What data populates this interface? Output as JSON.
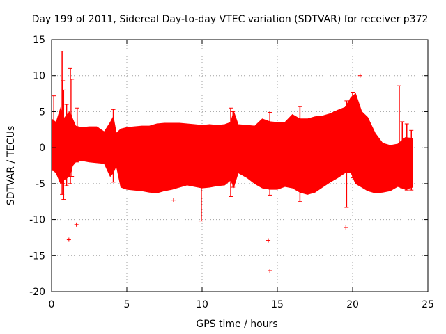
{
  "chart_data": {
    "type": "scatter",
    "title": "Day 199 of 2011, Sidereal Day-to-day VTEC variation (SDTVAR) for receiver p372",
    "xlabel": "GPS time / hours",
    "ylabel": "SDTVAR / TECUs",
    "xlim": [
      0,
      25
    ],
    "ylim": [
      -20,
      15
    ],
    "grid": true,
    "series_color": "#ff0000",
    "xticks": [
      {
        "value": 0,
        "label": "0"
      },
      {
        "value": 5,
        "label": "5"
      },
      {
        "value": 10,
        "label": "10"
      },
      {
        "value": 15,
        "label": "15"
      },
      {
        "value": 20,
        "label": "20"
      },
      {
        "value": 25,
        "label": "25"
      }
    ],
    "yticks": [
      {
        "value": -20,
        "label": "-20"
      },
      {
        "value": -15,
        "label": "-15"
      },
      {
        "value": -10,
        "label": "-10"
      },
      {
        "value": -5,
        "label": "-5"
      },
      {
        "value": 0,
        "label": "0"
      },
      {
        "value": 5,
        "label": "5"
      },
      {
        "value": 10,
        "label": "10"
      },
      {
        "value": 15,
        "label": "15"
      }
    ],
    "envelope": {
      "x": [
        0,
        0.3,
        0.6,
        0.8,
        1.2,
        1.4,
        1.6,
        2.0,
        2.5,
        3.0,
        3.5,
        3.9,
        4.1,
        4.3,
        4.6,
        5.0,
        5.5,
        6.0,
        6.5,
        7.0,
        7.5,
        8.0,
        8.5,
        9.0,
        9.5,
        10.0,
        10.5,
        11.0,
        11.5,
        11.9,
        12.1,
        12.4,
        13.0,
        13.5,
        14.0,
        14.5,
        15.0,
        15.5,
        16.0,
        16.5,
        17.0,
        17.5,
        18.0,
        18.5,
        19.0,
        19.5,
        19.9,
        20.2,
        20.6,
        21.0,
        21.5,
        22.0,
        22.5,
        23.0,
        23.5,
        24.0
      ],
      "upper": [
        4.0,
        3.5,
        5.5,
        4.0,
        5.0,
        4.0,
        3.0,
        2.8,
        2.9,
        2.9,
        2.2,
        3.5,
        4.3,
        2.0,
        2.6,
        2.8,
        2.9,
        3.0,
        3.0,
        3.3,
        3.4,
        3.4,
        3.4,
        3.3,
        3.2,
        3.1,
        3.2,
        3.1,
        3.2,
        3.5,
        5.0,
        3.2,
        3.1,
        3.0,
        4.0,
        3.6,
        3.5,
        3.5,
        4.6,
        4.0,
        4.0,
        4.3,
        4.4,
        4.7,
        5.2,
        5.6,
        7.0,
        7.5,
        5.0,
        4.2,
        2.0,
        0.6,
        0.3,
        0.5,
        1.4,
        1.3
      ],
      "lower": [
        -3.0,
        -3.5,
        -5.0,
        -4.5,
        -4.0,
        -2.5,
        -2.0,
        -1.8,
        -2.0,
        -2.1,
        -2.2,
        -4.0,
        -3.5,
        -2.5,
        -5.5,
        -5.8,
        -5.9,
        -6.0,
        -6.2,
        -6.3,
        -6.0,
        -5.8,
        -5.5,
        -5.2,
        -5.4,
        -5.6,
        -5.5,
        -5.3,
        -5.2,
        -4.5,
        -5.5,
        -3.5,
        -4.2,
        -5.0,
        -5.6,
        -5.8,
        -5.8,
        -5.4,
        -5.6,
        -6.2,
        -6.5,
        -6.2,
        -5.5,
        -4.8,
        -4.2,
        -3.5,
        -3.5,
        -5.0,
        -5.5,
        -6.0,
        -6.3,
        -6.2,
        -6.0,
        -5.4,
        -5.8,
        -5.5
      ]
    },
    "spikes": [
      {
        "x": 0.15,
        "ymin": -3.2,
        "ymax": 7.2
      },
      {
        "x": 0.7,
        "ymin": -6.5,
        "ymax": 13.4
      },
      {
        "x": 0.75,
        "ymin": -5.0,
        "ymax": 9.3
      },
      {
        "x": 0.8,
        "ymin": -7.2,
        "ymax": 8.0
      },
      {
        "x": 1.0,
        "ymin": -5.3,
        "ymax": 6.0
      },
      {
        "x": 1.25,
        "ymin": -5.0,
        "ymax": 11.0
      },
      {
        "x": 1.35,
        "ymin": -4.0,
        "ymax": 9.5
      },
      {
        "x": 1.7,
        "ymin": -2.0,
        "ymax": 5.5
      },
      {
        "x": 4.1,
        "ymin": -4.8,
        "ymax": 5.3
      },
      {
        "x": 11.9,
        "ymin": -6.8,
        "ymax": 5.5
      },
      {
        "x": 12.05,
        "ymin": -5.5,
        "ymax": 5.0
      },
      {
        "x": 14.5,
        "ymin": -6.6,
        "ymax": 4.9
      },
      {
        "x": 16.5,
        "ymin": -7.5,
        "ymax": 5.7
      },
      {
        "x": 19.6,
        "ymin": -8.3,
        "ymax": 6.5
      },
      {
        "x": 20.0,
        "ymin": -4.2,
        "ymax": 7.7
      },
      {
        "x": 23.1,
        "ymin": -5.0,
        "ymax": 8.6
      },
      {
        "x": 23.3,
        "ymin": -5.6,
        "ymax": 3.6
      },
      {
        "x": 23.6,
        "ymin": -5.9,
        "ymax": 3.3
      },
      {
        "x": 23.9,
        "ymin": -5.9,
        "ymax": 2.4
      },
      {
        "x": 9.95,
        "ymin": -10.2,
        "ymax": -4.0
      }
    ],
    "outliers": [
      {
        "x": 1.15,
        "y": -12.8
      },
      {
        "x": 1.65,
        "y": -10.7
      },
      {
        "x": 8.1,
        "y": -7.3
      },
      {
        "x": 14.4,
        "y": -12.9
      },
      {
        "x": 14.5,
        "y": -17.1
      },
      {
        "x": 19.55,
        "y": -11.1
      },
      {
        "x": 20.5,
        "y": 10.0
      },
      {
        "x": 3.1,
        "y": 2.6
      },
      {
        "x": 6.9,
        "y": -2.6
      }
    ]
  }
}
